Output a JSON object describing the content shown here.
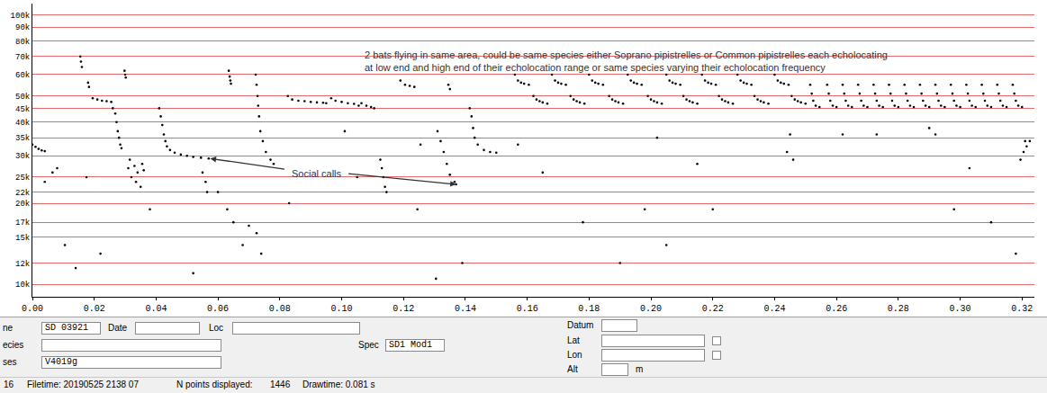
{
  "chart_data": {
    "type": "scatter",
    "color": "#000000",
    "marker": "dot",
    "grid": "y",
    "log": "y",
    "xlim": [
      0,
      0.324
    ],
    "xticks": [
      {
        "value": 0,
        "label": "0.00"
      },
      {
        "value": 0.02,
        "label": "0.02"
      },
      {
        "value": 0.04,
        "label": "0.04"
      },
      {
        "value": 0.06,
        "label": "0.06"
      },
      {
        "value": 0.08,
        "label": "0.08"
      },
      {
        "value": 0.1,
        "label": "0.10"
      },
      {
        "value": 0.12,
        "label": "0.12"
      },
      {
        "value": 0.14,
        "label": "0.14"
      },
      {
        "value": 0.16,
        "label": "0.16"
      },
      {
        "value": 0.18,
        "label": "0.18"
      },
      {
        "value": 0.2,
        "label": "0.20"
      },
      {
        "value": 0.22,
        "label": "0.22"
      },
      {
        "value": 0.24,
        "label": "0.24"
      },
      {
        "value": 0.26,
        "label": "0.26"
      },
      {
        "value": 0.28,
        "label": "0.28"
      },
      {
        "value": 0.3,
        "label": "0.30"
      },
      {
        "value": 0.32,
        "label": "0.32"
      }
    ],
    "ylim": [
      9,
      110
    ],
    "yticks": [
      {
        "value": 10,
        "label": "10k"
      },
      {
        "value": 12,
        "label": "12k"
      },
      {
        "value": 15,
        "label": "15k"
      },
      {
        "value": 17,
        "label": "17k"
      },
      {
        "value": 20,
        "label": "20k"
      },
      {
        "value": 22,
        "label": "22k"
      },
      {
        "value": 25,
        "label": "25k"
      },
      {
        "value": 30,
        "label": "30k"
      },
      {
        "value": 35,
        "label": "35k"
      },
      {
        "value": 40,
        "label": "40k"
      },
      {
        "value": 45,
        "label": "45k"
      },
      {
        "value": 50,
        "label": "50k"
      },
      {
        "value": 60,
        "label": "60k"
      },
      {
        "value": 70,
        "label": "70k"
      },
      {
        "value": 80,
        "label": "80k"
      },
      {
        "value": 90,
        "label": "90k"
      },
      {
        "value": 100,
        "label": "100k"
      }
    ],
    "x": [
      0,
      0.001,
      0.002,
      0.003,
      0.004,
      0.0155,
      0.0157,
      0.016,
      0.018,
      0.0183,
      0.0195,
      0.021,
      0.0225,
      0.024,
      0.0255,
      0.026,
      0.0268,
      0.0272,
      0.0276,
      0.028,
      0.0284,
      0.0288,
      0.0298,
      0.03,
      0.0302,
      0.031,
      0.0315,
      0.032,
      0.033,
      0.0335,
      0.034,
      0.035,
      0.0355,
      0.036,
      0.041,
      0.0415,
      0.042,
      0.0425,
      0.043,
      0.0435,
      0.0445,
      0.046,
      0.048,
      0.05,
      0.052,
      0.0545,
      0.057,
      0.055,
      0.056,
      0.0565,
      0.0635,
      0.0638,
      0.064,
      0.0642,
      0.063,
      0.065,
      0.068,
      0.07,
      0.0725,
      0.074,
      0.0722,
      0.0725,
      0.0728,
      0.073,
      0.0733,
      0.0737,
      0.0745,
      0.0755,
      0.077,
      0.078,
      0.0826,
      0.084,
      0.086,
      0.088,
      0.09,
      0.092,
      0.094,
      0.095,
      0.0966,
      0.098,
      0.1,
      0.102,
      0.104,
      0.1055,
      0.1064,
      0.108,
      0.1095,
      0.1105,
      0.1125,
      0.113,
      0.1135,
      0.114,
      0.1145,
      0.119,
      0.1205,
      0.122,
      0.1235,
      0.1255,
      0.1245,
      0.1305,
      0.139,
      0.131,
      0.132,
      0.133,
      0.134,
      0.135,
      0.1365,
      0.137,
      0.1345,
      0.135,
      0.1414,
      0.142,
      0.1425,
      0.143,
      0.144,
      0.146,
      0.148,
      0.15,
      0.004,
      0.0065,
      0.008,
      0.0105,
      0.014,
      0.0175,
      0.022,
      0.038,
      0.052,
      0.06,
      0.083,
      0.101,
      0.105,
      0.156,
      0.157,
      0.158,
      0.159,
      0.1605,
      0.168,
      0.169,
      0.17,
      0.171,
      0.1725,
      0.18,
      0.181,
      0.182,
      0.183,
      0.1845,
      0.1925,
      0.1935,
      0.1945,
      0.1955,
      0.197,
      0.205,
      0.206,
      0.207,
      0.208,
      0.2095,
      0.2165,
      0.2175,
      0.2185,
      0.2195,
      0.221,
      0.228,
      0.229,
      0.23,
      0.231,
      0.2325,
      0.24,
      0.241,
      0.242,
      0.243,
      0.2445,
      0.162,
      0.163,
      0.164,
      0.165,
      0.1665,
      0.174,
      0.175,
      0.176,
      0.177,
      0.1785,
      0.1865,
      0.1875,
      0.1885,
      0.1895,
      0.191,
      0.199,
      0.2,
      0.201,
      0.202,
      0.2035,
      0.2105,
      0.2115,
      0.2125,
      0.2135,
      0.215,
      0.222,
      0.223,
      0.224,
      0.225,
      0.2265,
      0.2335,
      0.2345,
      0.2355,
      0.2365,
      0.238,
      0.2455,
      0.2465,
      0.2475,
      0.2485,
      0.25,
      0.2515,
      0.252,
      0.2525,
      0.2533,
      0.2545,
      0.257,
      0.2575,
      0.258,
      0.2588,
      0.26,
      0.262,
      0.2625,
      0.263,
      0.2638,
      0.265,
      0.267,
      0.2675,
      0.268,
      0.2688,
      0.27,
      0.272,
      0.2725,
      0.273,
      0.2738,
      0.275,
      0.277,
      0.2775,
      0.278,
      0.2788,
      0.28,
      0.282,
      0.2825,
      0.283,
      0.2838,
      0.285,
      0.287,
      0.2875,
      0.288,
      0.2888,
      0.29,
      0.292,
      0.2925,
      0.293,
      0.2938,
      0.295,
      0.297,
      0.2975,
      0.298,
      0.2988,
      0.3,
      0.302,
      0.3025,
      0.303,
      0.3038,
      0.305,
      0.307,
      0.3075,
      0.308,
      0.3088,
      0.31,
      0.312,
      0.3125,
      0.313,
      0.3138,
      0.315,
      0.317,
      0.3175,
      0.318,
      0.3188,
      0.32,
      0.157,
      0.165,
      0.178,
      0.19,
      0.198,
      0.202,
      0.205,
      0.215,
      0.22,
      0.244,
      0.245,
      0.246,
      0.262,
      0.273,
      0.29,
      0.292,
      0.298,
      0.303,
      0.31,
      0.318,
      0.321,
      0.3195,
      0.3205,
      0.3215,
      0.3225
    ],
    "values": [
      33,
      32.4,
      31.8,
      31.4,
      31.2,
      70,
      67,
      64,
      56,
      54,
      49,
      48.5,
      48,
      47.8,
      47.5,
      45,
      43,
      40,
      37,
      35,
      33,
      32,
      62,
      60,
      58.5,
      27,
      29,
      25,
      27.5,
      24,
      26,
      23,
      28,
      26.5,
      45,
      42,
      39,
      36,
      34,
      32.5,
      31.5,
      30.8,
      30.3,
      30,
      29.7,
      29.5,
      29.3,
      26,
      24,
      22,
      62,
      59,
      57,
      55.5,
      19,
      17,
      14,
      16.5,
      15.5,
      13,
      60,
      55,
      50,
      46,
      42,
      37,
      34,
      31,
      29,
      28,
      50,
      48.5,
      48,
      47.8,
      47.5,
      47.3,
      47.2,
      47,
      49,
      48,
      47.5,
      47,
      46.7,
      46,
      47,
      46,
      45.5,
      45,
      29,
      27,
      25,
      23,
      22,
      57,
      55,
      54.5,
      54,
      33,
      19,
      10.5,
      12,
      37,
      34,
      31,
      28,
      25.5,
      24,
      23.5,
      55,
      53,
      45,
      42,
      38,
      35,
      33,
      31.5,
      31,
      30.8,
      24,
      26,
      27,
      14,
      11.5,
      25,
      13,
      19,
      11,
      22,
      20,
      37,
      25,
      60,
      57,
      56,
      55.5,
      55,
      60,
      57,
      56,
      55.5,
      55,
      60,
      57,
      56,
      55.5,
      55,
      60,
      57,
      56,
      55.5,
      55,
      60,
      57,
      56,
      55.5,
      55,
      60,
      57,
      56,
      55.5,
      55,
      60,
      57,
      56,
      55.5,
      55,
      60,
      57,
      56,
      55.5,
      55,
      50,
      48.5,
      47.8,
      47.3,
      46.8,
      50,
      48.5,
      47.8,
      47.3,
      46.8,
      50,
      48.5,
      47.8,
      47.3,
      46.8,
      50,
      48.5,
      47.8,
      47.3,
      46.8,
      50,
      48.5,
      47.8,
      47.3,
      46.8,
      50,
      48.5,
      47.8,
      47.3,
      46.8,
      50,
      48.5,
      47.8,
      47.3,
      46.8,
      50,
      48.5,
      47.8,
      47.3,
      46.8,
      55,
      51,
      48,
      46,
      45.5,
      55,
      51,
      48,
      46,
      45.5,
      55,
      51,
      48,
      46,
      45.5,
      55,
      51,
      48,
      46,
      45.5,
      55,
      51,
      48,
      46,
      45.5,
      55,
      51,
      48,
      46,
      45.5,
      55,
      51,
      48,
      46,
      45.5,
      55,
      51,
      48,
      46,
      45.5,
      55,
      51,
      48,
      46,
      45.5,
      55,
      51,
      48,
      46,
      45.5,
      55,
      51,
      48,
      46,
      45.5,
      55,
      51,
      48,
      46,
      45.5,
      55,
      51,
      48,
      46,
      45.5,
      55,
      51,
      48,
      46,
      45.5,
      33,
      26,
      17,
      12,
      19,
      35,
      14,
      28,
      19,
      31,
      36,
      29,
      36,
      36,
      38,
      36,
      19,
      27,
      17,
      13,
      34,
      29,
      31,
      32.5,
      34
    ],
    "annotations": [
      {
        "text": [
          "2 bats flying in same area, could be same species either Soprano pipistrelles or Common pipistrelles each echolocating",
          "at low end and high end of their echolocation range or same species varying their echolocation frequency"
        ]
      },
      {
        "text": "Social calls",
        "x": 0.092,
        "y": 25.8,
        "arrows_to": [
          {
            "x": 0.0575,
            "y": 29.3
          },
          {
            "x": 0.137,
            "y": 23.5
          }
        ]
      }
    ]
  },
  "info_panel": {
    "fields": [
      {
        "label": "ne",
        "value": "SD 03921"
      },
      {
        "label": "Date"
      },
      {
        "label": "Loc"
      },
      {
        "label": "Datum"
      },
      {
        "label": "ecies"
      },
      {
        "label": "Spec",
        "value": "SD1 Mod1"
      },
      {
        "label": "Lat"
      },
      {
        "label": "Lon"
      },
      {
        "label": "ses",
        "value": "V4019g"
      },
      {
        "label": "Alt",
        "unit": "m"
      }
    ],
    "status": [
      "16",
      "Filetime: 20190525 2138 07",
      "N points displayed:",
      "1446",
      "Drawtime: 0.081 s"
    ]
  }
}
